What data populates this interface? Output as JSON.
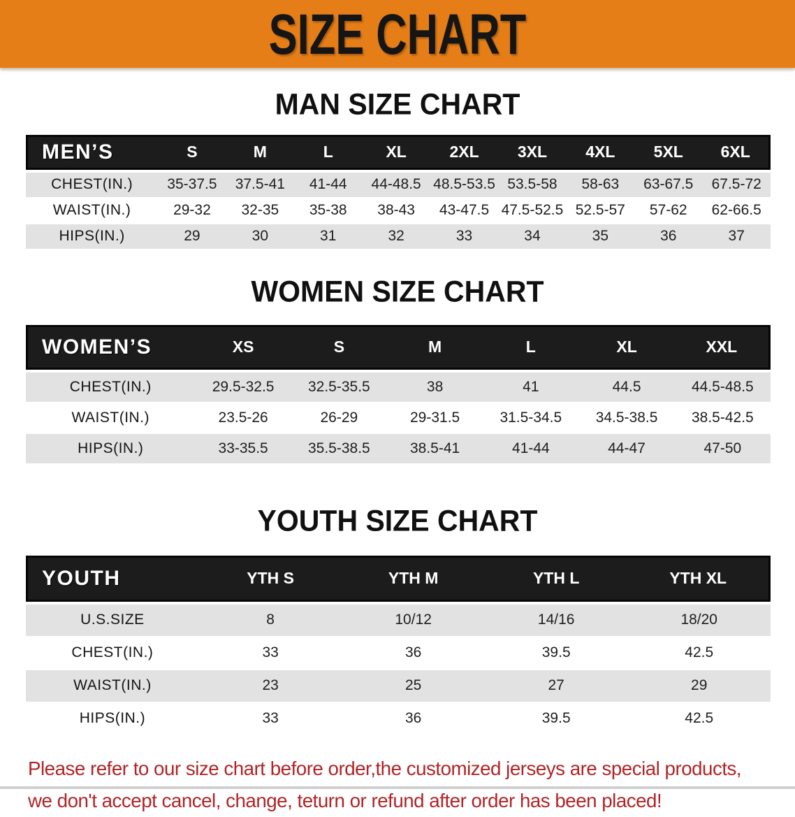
{
  "banner": {
    "title": "SIZE CHART"
  },
  "colors": {
    "banner_bg": "#e67e17",
    "table_header_bg": "#1c1c1c",
    "stripe_gray": "#e2e2e2",
    "disclaimer_red": "#b12427"
  },
  "sections": {
    "men": {
      "heading": "MAN SIZE CHART",
      "table": {
        "label": "MEN’S",
        "columns": [
          "S",
          "M",
          "L",
          "XL",
          "2XL",
          "3XL",
          "4XL",
          "5XL",
          "6XL"
        ],
        "rows": [
          {
            "label": "CHEST(IN.)",
            "values": [
              "35-37.5",
              "37.5-41",
              "41-44",
              "44-48.5",
              "48.5-53.5",
              "53.5-58",
              "58-63",
              "63-67.5",
              "67.5-72"
            ]
          },
          {
            "label": "WAIST(IN.)",
            "values": [
              "29-32",
              "32-35",
              "35-38",
              "38-43",
              "43-47.5",
              "47.5-52.5",
              "52.5-57",
              "57-62",
              "62-66.5"
            ]
          },
          {
            "label": "HIPS(IN.)",
            "values": [
              "29",
              "30",
              "31",
              "32",
              "33",
              "34",
              "35",
              "36",
              "37"
            ]
          }
        ]
      }
    },
    "women": {
      "heading": "WOMEN SIZE CHART",
      "table": {
        "label": "WOMEN’S",
        "columns": [
          "XS",
          "S",
          "M",
          "L",
          "XL",
          "XXL"
        ],
        "rows": [
          {
            "label": "CHEST(IN.)",
            "values": [
              "29.5-32.5",
              "32.5-35.5",
              "38",
              "41",
              "44.5",
              "44.5-48.5"
            ]
          },
          {
            "label": "WAIST(IN.)",
            "values": [
              "23.5-26",
              "26-29",
              "29-31.5",
              "31.5-34.5",
              "34.5-38.5",
              "38.5-42.5"
            ]
          },
          {
            "label": "HIPS(IN.)",
            "values": [
              "33-35.5",
              "35.5-38.5",
              "38.5-41",
              "41-44",
              "44-47",
              "47-50"
            ]
          }
        ]
      }
    },
    "youth": {
      "heading": "YOUTH SIZE CHART",
      "table": {
        "label": "YOUTH",
        "columns": [
          "YTH S",
          "YTH M",
          "YTH L",
          "YTH XL"
        ],
        "rows": [
          {
            "label": "U.S.SIZE",
            "values": [
              "8",
              "10/12",
              "14/16",
              "18/20"
            ]
          },
          {
            "label": "CHEST(IN.)",
            "values": [
              "33",
              "36",
              "39.5",
              "42.5"
            ]
          },
          {
            "label": "WAIST(IN.)",
            "values": [
              "23",
              "25",
              "27",
              "29"
            ]
          },
          {
            "label": "HIPS(IN.)",
            "values": [
              "33",
              "36",
              "39.5",
              "42.5"
            ]
          }
        ]
      }
    }
  },
  "disclaimer": {
    "line1": "Please refer to our size chart before order,the customized jerseys are special products,",
    "line2": "we don't accept cancel, change, teturn or refund after order has been placed!"
  }
}
